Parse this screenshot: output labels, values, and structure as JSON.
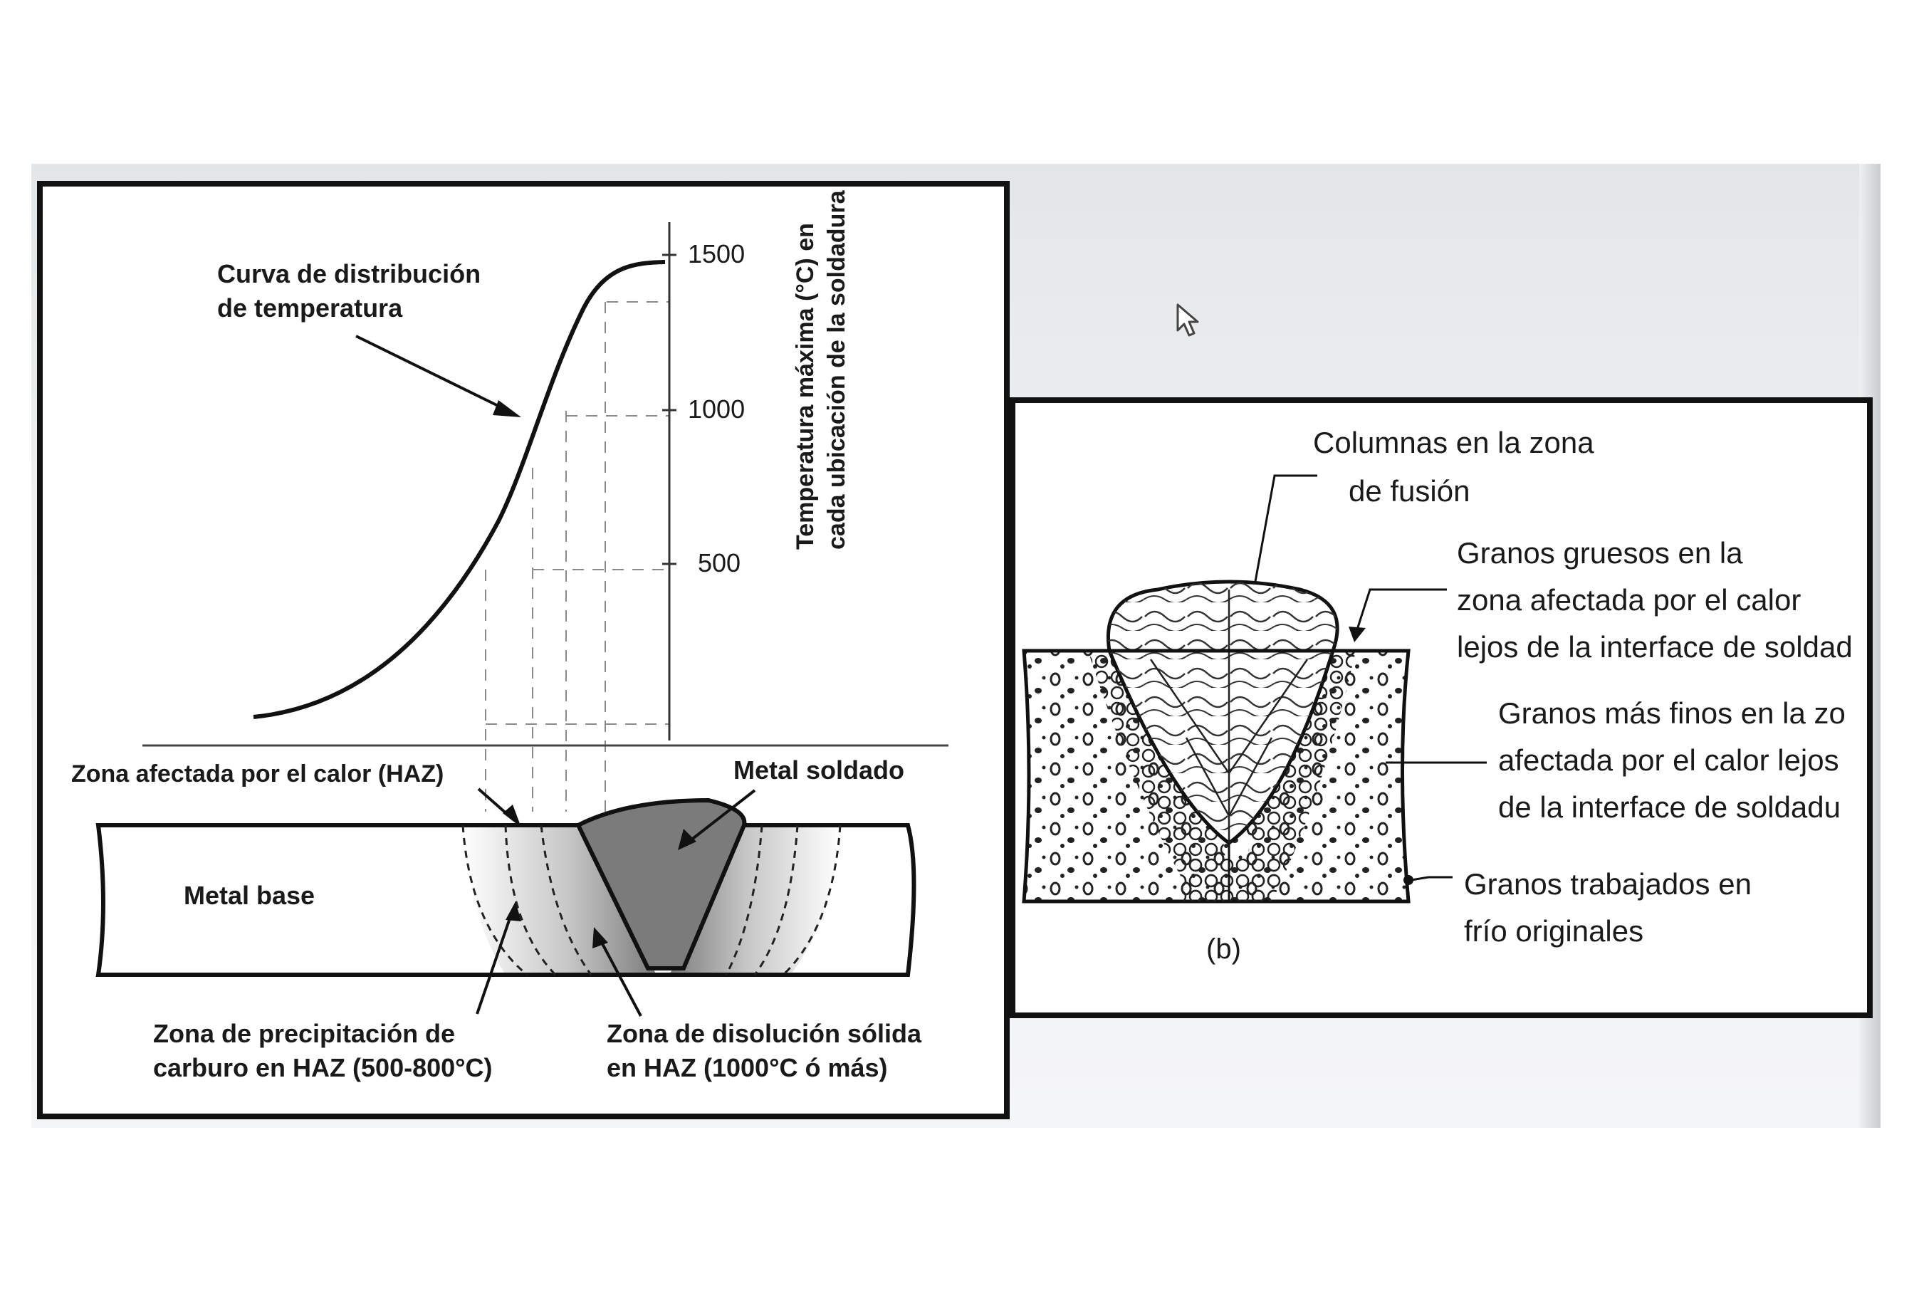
{
  "panel_a": {
    "curve_label": [
      "Curva de distribución",
      "de temperatura"
    ],
    "y_axis_label": [
      "Temperatura máxima (°C) en",
      "cada ubicación de la soldadura"
    ],
    "y_ticks": [
      {
        "value": 1500,
        "label": "1500"
      },
      {
        "value": 1000,
        "label": "1000"
      },
      {
        "value": 500,
        "label": "500"
      }
    ],
    "haz_label": "Zona afectada por el calor (HAZ)",
    "weld_metal_label": "Metal soldado",
    "base_metal_label": "Metal base",
    "precipitation_label": [
      "Zona de precipitación de",
      "carburo en HAZ (500-800°C)"
    ],
    "dissolution_label": [
      "Zona de disolución sólida",
      "en HAZ (1000°C ó más)"
    ]
  },
  "panel_b": {
    "columns_label": [
      "Columnas  en la zona",
      "de fusión"
    ],
    "coarse_label": [
      "Granos gruesos en la",
      "zona afectada por el calor",
      "lejos de la interface de soldad"
    ],
    "fine_label": [
      "Granos más finos en la zo",
      "afectada por el calor lejos",
      "de la interface de soldadu"
    ],
    "original_label": [
      "Granos trabajados en",
      "frío originales"
    ],
    "caption": "(b)"
  },
  "cursor_icon": "arrow-cursor-icon"
}
